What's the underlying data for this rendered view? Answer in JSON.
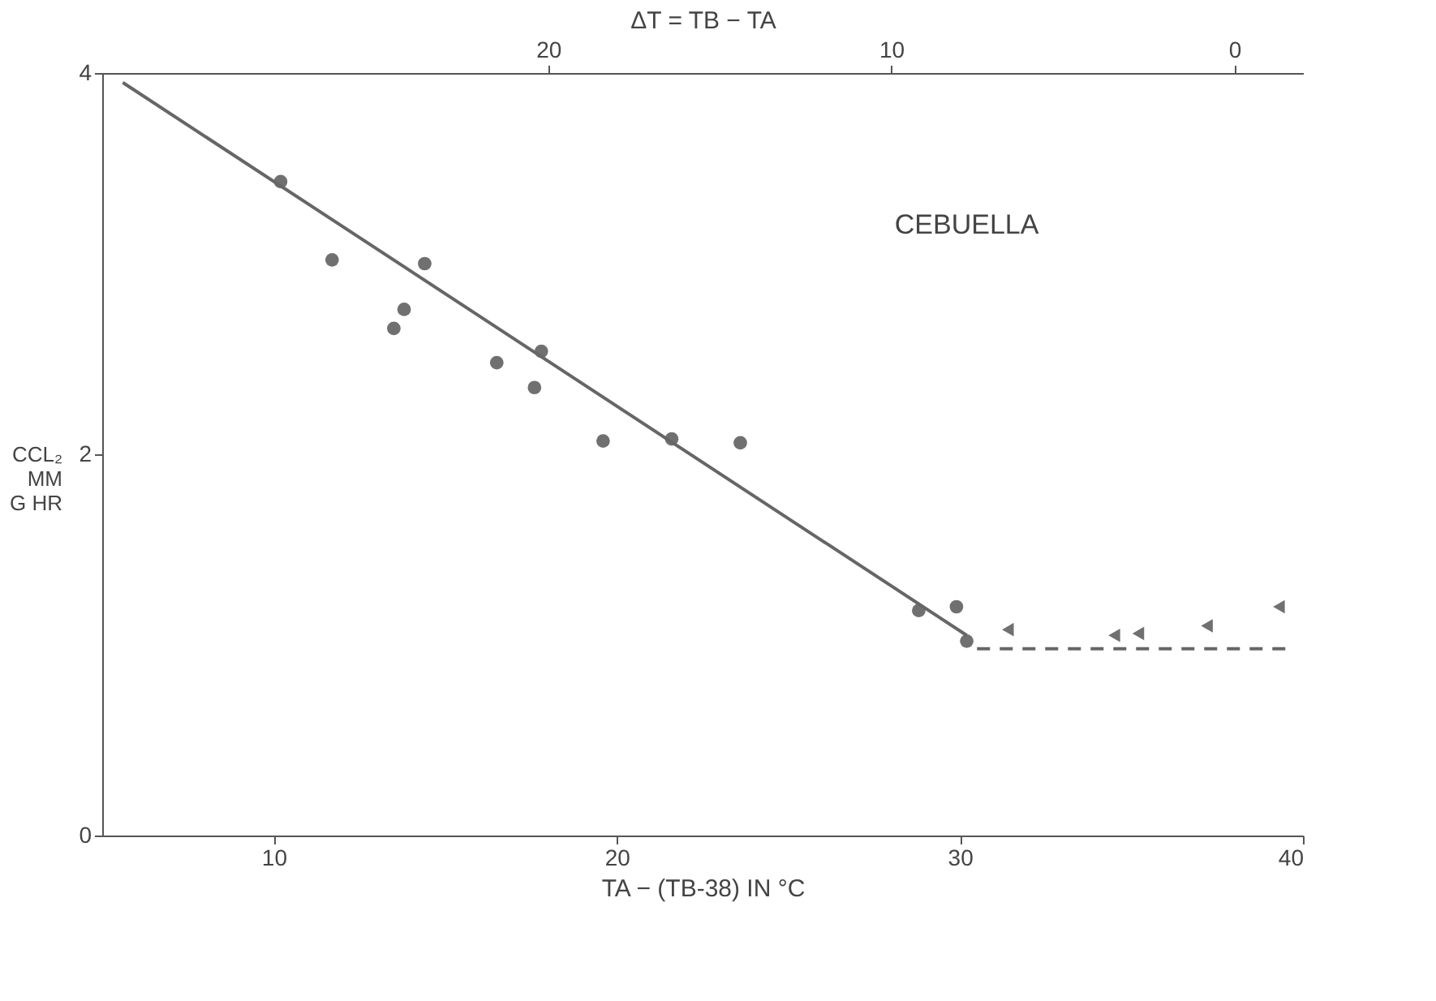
{
  "chart_data": {
    "type": "scatter",
    "xlabel": "TA − (TB-38) IN °C",
    "x2label": "ΔT = TB − TA",
    "ylabel": "CCL₂\nMM\nG HR",
    "annotations": [
      "CEBUELLA"
    ],
    "xlim": [
      5,
      40
    ],
    "xticks": [
      10,
      20,
      30,
      40
    ],
    "ylim": [
      0,
      4
    ],
    "yticks": [
      0,
      2,
      4
    ],
    "x2lim": [
      33,
      -2
    ],
    "x2ticks": [
      20,
      10,
      0
    ],
    "grid": false,
    "series": [
      {
        "marker": "circle",
        "color": "#333333",
        "x": [
          10.2,
          11.7,
          14.4,
          13.8,
          13.5,
          16.5,
          17.8,
          17.6,
          19.6,
          21.6,
          23.6,
          28.8,
          29.9,
          30.2
        ],
        "values": [
          3.43,
          3.02,
          3.0,
          2.76,
          2.66,
          2.48,
          2.54,
          2.35,
          2.07,
          2.08,
          2.06,
          1.18,
          1.2,
          1.02
        ]
      },
      {
        "marker": "triangle",
        "color": "#333333",
        "x": [
          31.4,
          34.5,
          35.2,
          37.2,
          39.3
        ],
        "values": [
          1.08,
          1.05,
          1.06,
          1.1,
          1.2
        ]
      },
      {
        "type": "line",
        "line_style": "solid",
        "color": "#666666",
        "x": [
          5.6,
          30.2
        ],
        "values": [
          3.95,
          1.05
        ]
      },
      {
        "type": "line",
        "line_style": "dashed",
        "color": "#666666",
        "x": [
          30.5,
          39.5
        ],
        "values": [
          0.98,
          0.98
        ]
      }
    ]
  }
}
